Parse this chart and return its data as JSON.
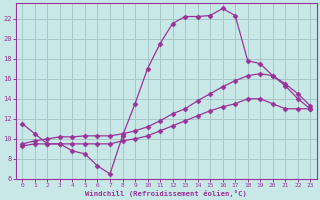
{
  "xlabel": "Windchill (Refroidissement éolien,°C)",
  "bg_color": "#c8e8e8",
  "grid_color": "#a8c8c8",
  "line_color": "#993399",
  "xlim": [
    -0.5,
    23.5
  ],
  "ylim": [
    6,
    23.5
  ],
  "xticks": [
    0,
    1,
    2,
    3,
    4,
    5,
    6,
    7,
    8,
    9,
    10,
    11,
    12,
    13,
    14,
    15,
    16,
    17,
    18,
    19,
    20,
    21,
    22,
    23
  ],
  "yticks": [
    6,
    8,
    10,
    12,
    14,
    16,
    18,
    20,
    22
  ],
  "line1_x": [
    0,
    1,
    2,
    3,
    4,
    5,
    6,
    7,
    8,
    9,
    10,
    11,
    12,
    13,
    14,
    15,
    16,
    17,
    18,
    19,
    20,
    21,
    22,
    23
  ],
  "line1_y": [
    11.5,
    10.5,
    9.5,
    9.5,
    8.8,
    8.5,
    7.3,
    6.5,
    10.3,
    13.5,
    17.0,
    19.5,
    21.5,
    22.2,
    22.2,
    22.3,
    23.0,
    22.3,
    17.8,
    17.5,
    16.3,
    15.3,
    14.0,
    13.0
  ],
  "line2_x": [
    0,
    1,
    2,
    3,
    4,
    5,
    6,
    7,
    8,
    9,
    10,
    11,
    12,
    13,
    14,
    15,
    16,
    17,
    18,
    19,
    20,
    21,
    22,
    23
  ],
  "line2_y": [
    9.5,
    9.8,
    10.0,
    10.2,
    10.2,
    10.3,
    10.3,
    10.3,
    10.5,
    10.8,
    11.2,
    11.8,
    12.5,
    13.0,
    13.8,
    14.5,
    15.2,
    15.8,
    16.3,
    16.5,
    16.3,
    15.5,
    14.5,
    13.3
  ],
  "line3_x": [
    0,
    1,
    2,
    3,
    4,
    5,
    6,
    7,
    8,
    9,
    10,
    11,
    12,
    13,
    14,
    15,
    16,
    17,
    18,
    19,
    20,
    21,
    22,
    23
  ],
  "line3_y": [
    9.3,
    9.5,
    9.5,
    9.5,
    9.5,
    9.5,
    9.5,
    9.5,
    9.8,
    10.0,
    10.3,
    10.8,
    11.3,
    11.8,
    12.3,
    12.8,
    13.2,
    13.5,
    14.0,
    14.0,
    13.5,
    13.0,
    13.0,
    13.0
  ]
}
